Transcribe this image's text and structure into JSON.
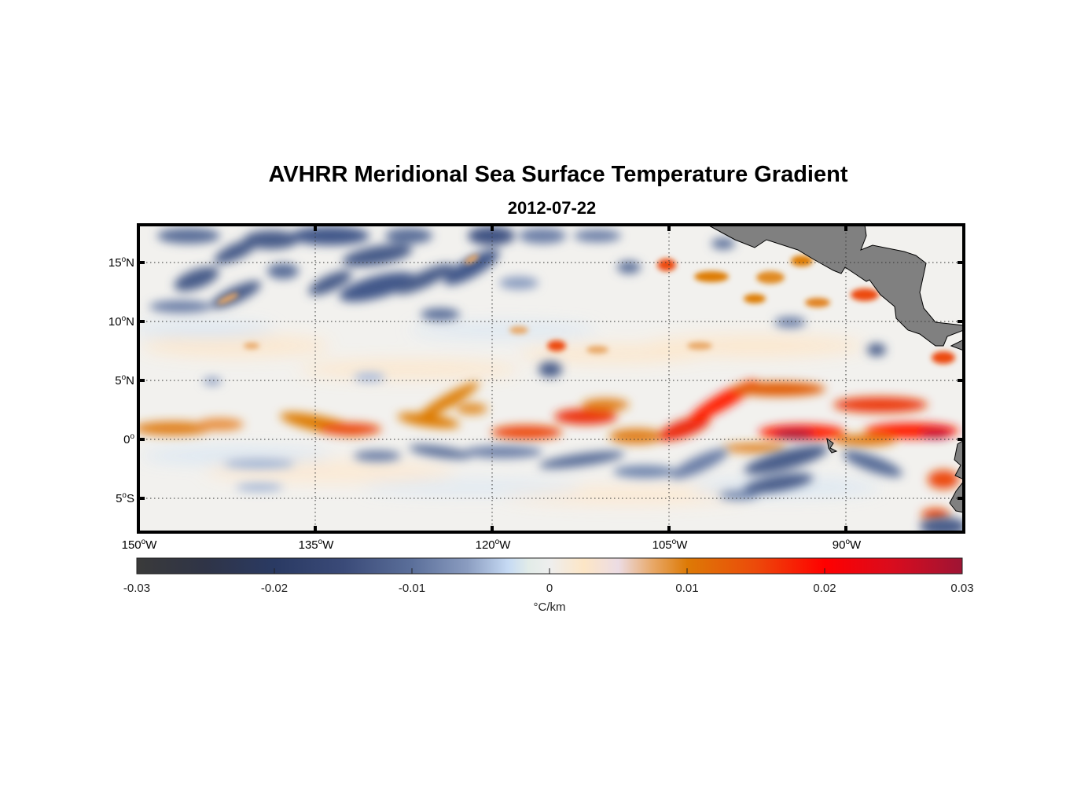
{
  "chart_data": {
    "type": "heatmap",
    "title": "AVHRR Meridional Sea Surface Temperature Gradient",
    "subtitle": "2012-07-22",
    "variable": "Meridional SST gradient",
    "units": "°C/km",
    "lon_range": [
      -150,
      -80
    ],
    "lat_range": [
      -8,
      18
    ],
    "lat_ticks": [
      {
        "value": 15,
        "deg": "15",
        "hemi": "N"
      },
      {
        "value": 10,
        "deg": "10",
        "hemi": "N"
      },
      {
        "value": 5,
        "deg": "5",
        "hemi": "N"
      },
      {
        "value": 0,
        "deg": "0",
        "hemi": ""
      },
      {
        "value": -5,
        "deg": "5",
        "hemi": "S"
      }
    ],
    "lon_ticks": [
      {
        "value": -150,
        "deg": "150",
        "hemi": "W"
      },
      {
        "value": -135,
        "deg": "135",
        "hemi": "W"
      },
      {
        "value": -120,
        "deg": "120",
        "hemi": "W"
      },
      {
        "value": -105,
        "deg": "105",
        "hemi": "W"
      },
      {
        "value": -90,
        "deg": "90",
        "hemi": "W"
      }
    ],
    "grid": "dotted",
    "colorbar": {
      "range": [
        -0.03,
        0.03
      ],
      "ticks": [
        "-0.03",
        "-0.02",
        "-0.01",
        "0",
        "0.01",
        "0.02",
        "0.03"
      ],
      "tick_values": [
        -0.03,
        -0.02,
        -0.01,
        0,
        0.01,
        0.02,
        0.03
      ],
      "label": "°C/km",
      "placement": "bottom",
      "colors": [
        {
          "value": -0.03,
          "color": "#3a3a3a"
        },
        {
          "value": -0.025,
          "color": "#2f3447"
        },
        {
          "value": -0.02,
          "color": "#2a3a63"
        },
        {
          "value": -0.015,
          "color": "#3a4a78"
        },
        {
          "value": -0.01,
          "color": "#5b6f9a"
        },
        {
          "value": -0.006,
          "color": "#8a9cc0"
        },
        {
          "value": -0.003,
          "color": "#c6daf4"
        },
        {
          "value": -0.0015,
          "color": "#e2ece8"
        },
        {
          "value": 0,
          "color": "#eeeeee"
        },
        {
          "value": 0.0025,
          "color": "#fde6c6"
        },
        {
          "value": 0.005,
          "color": "#ecdce4"
        },
        {
          "value": 0.0075,
          "color": "#e8a868"
        },
        {
          "value": 0.01,
          "color": "#dd7a06"
        },
        {
          "value": 0.015,
          "color": "#ec4a0a"
        },
        {
          "value": 0.02,
          "color": "#ff0000"
        },
        {
          "value": 0.025,
          "color": "#d80c1e"
        },
        {
          "value": 0.03,
          "color": "#9e1434"
        }
      ]
    },
    "land_color": "#808080",
    "features": [
      {
        "name": "equatorial front north",
        "sign": "positive",
        "lat_approx": 1,
        "lon_span": [
          -150,
          -80
        ]
      },
      {
        "name": "equatorial band south",
        "sign": "negative",
        "lat_approx": -2,
        "lon_span": [
          -140,
          -82
        ]
      },
      {
        "name": "tropical instability waves north",
        "sign": "negative",
        "lat_approx": 14,
        "lon_span": [
          -150,
          -118
        ]
      }
    ]
  }
}
